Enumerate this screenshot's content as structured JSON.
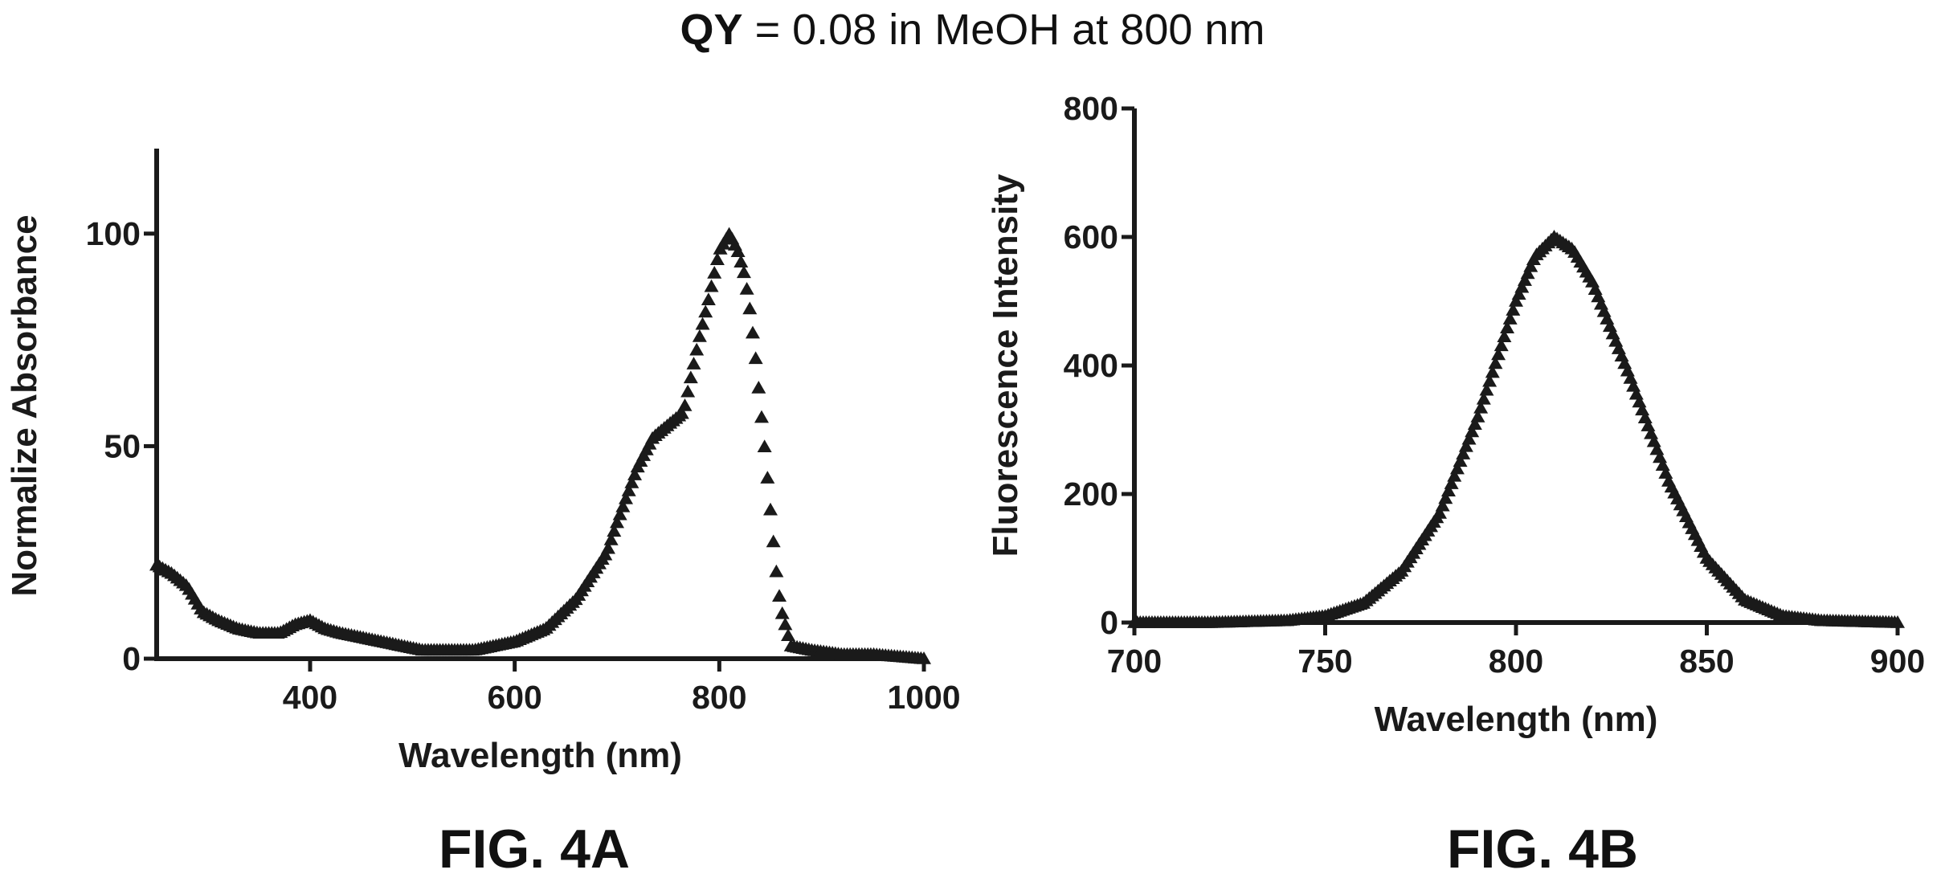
{
  "figure": {
    "title_bold": "QY",
    "title_rest": " = 0.08 in MeOH at 800 nm"
  },
  "chart_data": [
    {
      "type": "scatter",
      "caption": "FIG. 4A",
      "xlabel": "Wavelength (nm)",
      "ylabel": "Normalize Absorbance",
      "xlim": [
        250,
        1000
      ],
      "ylim": [
        0,
        120
      ],
      "xticks": [
        400,
        600,
        800,
        1000
      ],
      "yticks": [
        0,
        50,
        100
      ],
      "grid": false,
      "marker": "triangle",
      "color": "#1a1a1a",
      "series": [
        {
          "x": [
            250,
            265,
            280,
            295,
            310,
            330,
            350,
            370,
            385,
            400,
            415,
            430,
            450,
            470,
            490,
            510,
            530,
            560,
            600,
            630,
            660,
            690,
            700,
            720,
            735,
            750,
            765,
            780,
            790,
            800,
            810,
            818,
            825,
            830,
            835,
            840,
            845,
            850,
            855,
            860,
            870,
            890,
            920,
            950,
            1000
          ],
          "y": [
            22,
            20,
            17,
            11,
            9,
            7,
            6,
            6,
            8,
            9,
            7,
            6,
            5,
            4,
            3,
            2,
            2,
            2,
            4,
            7,
            14,
            25,
            32,
            45,
            52,
            55,
            58,
            75,
            85,
            96,
            100,
            96,
            90,
            82,
            72,
            60,
            48,
            35,
            22,
            12,
            3,
            2,
            1,
            1,
            0
          ]
        }
      ]
    },
    {
      "type": "scatter",
      "caption": "FIG. 4B",
      "xlabel": "Wavelength (nm)",
      "ylabel": "Fluorescence Intensity",
      "xlim": [
        700,
        900
      ],
      "ylim": [
        0,
        800
      ],
      "xticks": [
        700,
        750,
        800,
        850,
        900
      ],
      "yticks": [
        0,
        200,
        400,
        600,
        800
      ],
      "grid": false,
      "marker": "triangle",
      "color": "#1a1a1a",
      "series": [
        {
          "x": [
            700,
            720,
            740,
            750,
            760,
            770,
            780,
            790,
            800,
            805,
            810,
            815,
            820,
            830,
            840,
            850,
            860,
            870,
            880,
            900
          ],
          "y": [
            0,
            0,
            3,
            10,
            30,
            80,
            170,
            320,
            500,
            570,
            600,
            580,
            530,
            380,
            220,
            100,
            35,
            10,
            3,
            0
          ]
        }
      ]
    }
  ]
}
